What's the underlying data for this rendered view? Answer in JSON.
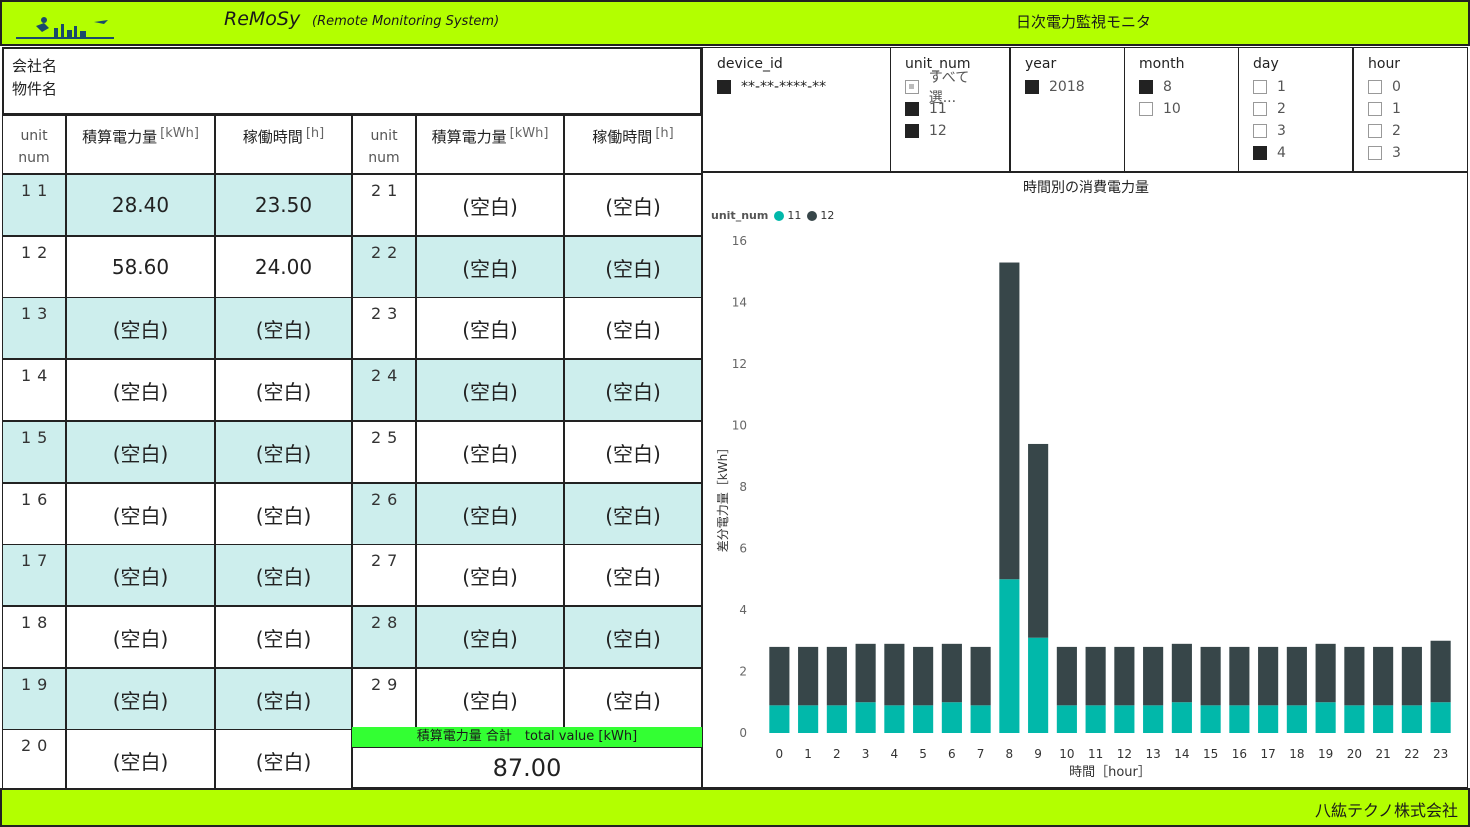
{
  "header": {
    "app_name": "ReMoSy",
    "app_subtitle": "(Remote Monitoring System)",
    "monitor_title": "日次電力監視モニタ"
  },
  "footer": {
    "company": "八紘テクノ株式会社"
  },
  "info": {
    "company_label": "会社名",
    "property_label": "物件名"
  },
  "table": {
    "col_unit_line1": "unit",
    "col_unit_line2": "num",
    "col_energy": "積算電力量",
    "col_energy_unit": "[kWh]",
    "col_hours": "稼働時間",
    "col_hours_unit": "[h]",
    "left_rows": [
      {
        "unit": "11",
        "energy": "28.40",
        "hours": "23.50"
      },
      {
        "unit": "12",
        "energy": "58.60",
        "hours": "24.00"
      },
      {
        "unit": "13",
        "energy": "(空白)",
        "hours": "(空白)"
      },
      {
        "unit": "14",
        "energy": "(空白)",
        "hours": "(空白)"
      },
      {
        "unit": "15",
        "energy": "(空白)",
        "hours": "(空白)"
      },
      {
        "unit": "16",
        "energy": "(空白)",
        "hours": "(空白)"
      },
      {
        "unit": "17",
        "energy": "(空白)",
        "hours": "(空白)"
      },
      {
        "unit": "18",
        "energy": "(空白)",
        "hours": "(空白)"
      },
      {
        "unit": "19",
        "energy": "(空白)",
        "hours": "(空白)"
      },
      {
        "unit": "20",
        "energy": "(空白)",
        "hours": "(空白)"
      }
    ],
    "right_rows": [
      {
        "unit": "21",
        "energy": "(空白)",
        "hours": "(空白)"
      },
      {
        "unit": "22",
        "energy": "(空白)",
        "hours": "(空白)"
      },
      {
        "unit": "23",
        "energy": "(空白)",
        "hours": "(空白)"
      },
      {
        "unit": "24",
        "energy": "(空白)",
        "hours": "(空白)"
      },
      {
        "unit": "25",
        "energy": "(空白)",
        "hours": "(空白)"
      },
      {
        "unit": "26",
        "energy": "(空白)",
        "hours": "(空白)"
      },
      {
        "unit": "27",
        "energy": "(空白)",
        "hours": "(空白)"
      },
      {
        "unit": "28",
        "energy": "(空白)",
        "hours": "(空白)"
      },
      {
        "unit": "29",
        "energy": "(空白)",
        "hours": "(空白)"
      }
    ],
    "total_label": "積算電力量 合計　total value [kWh]",
    "total_value": "87.00"
  },
  "slicers": {
    "device_id": {
      "title": "device_id",
      "options": [
        {
          "label": "**-**-****-**",
          "state": "on"
        }
      ]
    },
    "unit_num": {
      "title": "unit_num",
      "options": [
        {
          "label": "すべて選...",
          "state": "part"
        },
        {
          "label": "11",
          "state": "on"
        },
        {
          "label": "12",
          "state": "on"
        }
      ]
    },
    "year": {
      "title": "year",
      "options": [
        {
          "label": "2018",
          "state": "on"
        }
      ]
    },
    "month": {
      "title": "month",
      "options": [
        {
          "label": "8",
          "state": "on"
        },
        {
          "label": "10",
          "state": "off"
        }
      ]
    },
    "day": {
      "title": "day",
      "options": [
        {
          "label": "1",
          "state": "off"
        },
        {
          "label": "2",
          "state": "off"
        },
        {
          "label": "3",
          "state": "off"
        },
        {
          "label": "4",
          "state": "on"
        }
      ]
    },
    "hour": {
      "title": "hour",
      "options": [
        {
          "label": "0",
          "state": "off"
        },
        {
          "label": "1",
          "state": "off"
        },
        {
          "label": "2",
          "state": "off"
        },
        {
          "label": "3",
          "state": "off"
        }
      ]
    }
  },
  "chart_data": {
    "type": "bar",
    "stacked": true,
    "title": "時間別の消費電力量",
    "legend_title": "unit_num",
    "xlabel": "時間［hour］",
    "ylabel": "差分電力量［kWh］",
    "ylim": [
      0,
      16
    ],
    "yticks": [
      0,
      2,
      4,
      6,
      8,
      10,
      12,
      14,
      16
    ],
    "grid": false,
    "legend_position": "top-left",
    "categories": [
      "0",
      "1",
      "2",
      "3",
      "4",
      "5",
      "6",
      "7",
      "8",
      "9",
      "10",
      "11",
      "12",
      "13",
      "14",
      "15",
      "16",
      "17",
      "18",
      "19",
      "20",
      "21",
      "22",
      "23"
    ],
    "series": [
      {
        "name": "11",
        "color": "#01b8aa",
        "values": [
          0.9,
          0.9,
          0.9,
          1.0,
          0.9,
          0.9,
          1.0,
          0.9,
          5.0,
          3.1,
          0.9,
          0.9,
          0.9,
          0.9,
          1.0,
          0.9,
          0.9,
          0.9,
          0.9,
          1.0,
          0.9,
          0.9,
          0.9,
          1.0
        ]
      },
      {
        "name": "12",
        "color": "#374649",
        "values": [
          1.9,
          1.9,
          1.9,
          1.9,
          2.0,
          1.9,
          1.9,
          1.9,
          10.3,
          6.3,
          1.9,
          1.9,
          1.9,
          1.9,
          1.9,
          1.9,
          1.9,
          1.9,
          1.9,
          1.9,
          1.9,
          1.9,
          1.9,
          2.0
        ]
      }
    ]
  }
}
